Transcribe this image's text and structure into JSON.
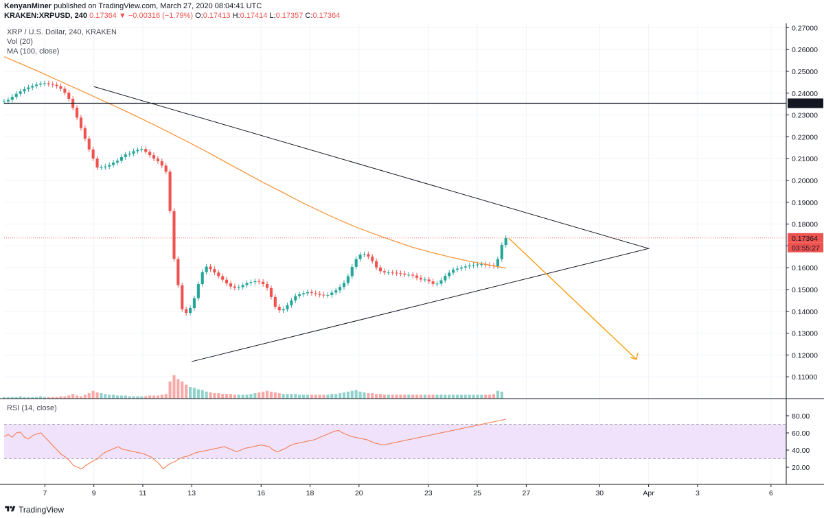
{
  "header": {
    "line1_user": "KenyanMiner",
    "line1_rest": " published on TradingView.com, March 27, 2020 08:04:41 UTC",
    "symbol": "KRAKEN:XRPUSD, 240",
    "last_price": "0.17364",
    "change": "−0.00316 (−1.79%)",
    "o_label": "O:",
    "o_value": "0.17413",
    "h_label": "H:",
    "h_value": "0.17414",
    "l_label": "L:",
    "l_value": "0.17357",
    "c_label": "C:",
    "c_value": "0.17364"
  },
  "legend": {
    "title": "XRP / U.S. Dollar, 240, KRAKEN",
    "volume": "Vol (20)",
    "ma": "MA (100, close)"
  },
  "rsi": {
    "label": "RSI (14, close)"
  },
  "footer": {
    "brand": "TradingView"
  },
  "colors": {
    "up": "#26a69a",
    "down": "#ef5350",
    "vol_up": "#92d2cc",
    "vol_down": "#f7a9a7",
    "ma": "#f7953b",
    "rsi": "#f57c4f",
    "rsi_band": "#f0e2fb",
    "projection_arrow": "#f7a21b"
  },
  "chart_data": [
    {
      "type": "candlestick",
      "title": "XRP / U.S. Dollar, 240, KRAKEN",
      "ylim": [
        0.1,
        0.272
      ],
      "y_ticks": [
        "0.27000",
        "0.26000",
        "0.25000",
        "0.24000",
        "0.23000",
        "0.22000",
        "0.21000",
        "0.20000",
        "0.19000",
        "0.18000",
        "0.17000",
        "0.16000",
        "0.15000",
        "0.14000",
        "0.13000",
        "0.12000",
        "0.11000"
      ],
      "x_ticks": [
        "7",
        "9",
        "11",
        "13",
        "16",
        "18",
        "20",
        "23",
        "25",
        "27",
        "30",
        "Apr",
        "3",
        "6"
      ],
      "price_markers": [
        {
          "value": "0.23537",
          "style": "dark"
        },
        {
          "value": "0.17364",
          "style": "red"
        },
        {
          "value": "03:55:27",
          "style": "red"
        }
      ],
      "horizontal_line": 0.23537,
      "last_price_line": 0.17364,
      "x_range": [
        0,
        185
      ],
      "candle_range": [
        0,
        123
      ],
      "date_ticks_x": [
        10,
        22,
        34,
        46,
        63,
        75,
        87,
        104,
        116,
        128,
        146,
        158,
        170,
        188
      ],
      "series": [
        {
          "name": "Price",
          "values": [
            0.2362,
            0.2369,
            0.2383,
            0.2397,
            0.2408,
            0.2418,
            0.2426,
            0.2433,
            0.2439,
            0.2444,
            0.2445,
            0.2441,
            0.2438,
            0.2432,
            0.242,
            0.2402,
            0.2374,
            0.2333,
            0.2288,
            0.224,
            0.2191,
            0.2142,
            0.21,
            0.2059,
            0.206,
            0.2064,
            0.2071,
            0.2082,
            0.209,
            0.2107,
            0.2119,
            0.2123,
            0.2134,
            0.214,
            0.2144,
            0.2131,
            0.2116,
            0.21,
            0.2088,
            0.2068,
            0.204,
            0.186,
            0.164,
            0.152,
            0.141,
            0.1393,
            0.1415,
            0.146,
            0.1525,
            0.158,
            0.1605,
            0.1594,
            0.1578,
            0.1561,
            0.1545,
            0.1528,
            0.1514,
            0.1508,
            0.1511,
            0.152,
            0.153,
            0.1534,
            0.1538,
            0.1535,
            0.1525,
            0.1507,
            0.1466,
            0.1421,
            0.1405,
            0.141,
            0.1428,
            0.145,
            0.147,
            0.1478,
            0.1483,
            0.1488,
            0.1484,
            0.1481,
            0.1476,
            0.1473,
            0.1475,
            0.1486,
            0.1496,
            0.1512,
            0.153,
            0.1561,
            0.1604,
            0.164,
            0.166,
            0.1662,
            0.1651,
            0.163,
            0.1601,
            0.1584,
            0.1578,
            0.1578,
            0.1577,
            0.1575,
            0.1573,
            0.1568,
            0.1568,
            0.1564,
            0.1554,
            0.1546,
            0.1546,
            0.1537,
            0.1526,
            0.1527,
            0.1542,
            0.1562,
            0.1577,
            0.1591,
            0.1596,
            0.1601,
            0.1606,
            0.161,
            0.1612,
            0.1615,
            0.1616,
            0.1613,
            0.161,
            0.1607,
            0.1639,
            0.1704,
            0.1736
          ]
        },
        {
          "name": "MA (100, close)",
          "values": [
            0.2567,
            0.2531,
            0.2494,
            0.2455,
            0.2417,
            0.2378,
            0.2339,
            0.2299,
            0.2258,
            0.2215,
            0.2172,
            0.2127,
            0.208,
            0.2034,
            0.1988,
            0.1945,
            0.19,
            0.1859,
            0.182,
            0.1784,
            0.1752,
            0.1722,
            0.1693,
            0.167,
            0.1649,
            0.163,
            0.1614,
            0.1598
          ]
        },
        {
          "name": "Triangle",
          "values": [
            0.243,
            0.172,
            0.117
          ]
        }
      ],
      "projection": {
        "from": 0.1736,
        "to": 0.118
      }
    },
    {
      "type": "bar",
      "title": "Vol (20)",
      "values": [
        2,
        2,
        2,
        2,
        3,
        2,
        2,
        2,
        2,
        3,
        2,
        2,
        2,
        2,
        3,
        3,
        4,
        6,
        4,
        3,
        5,
        7,
        10,
        8,
        7,
        6,
        5,
        5,
        4,
        4,
        4,
        3,
        3,
        3,
        3,
        3,
        4,
        4,
        4,
        5,
        6,
        22,
        30,
        25,
        22,
        18,
        15,
        14,
        12,
        11,
        9,
        8,
        7,
        7,
        6,
        6,
        6,
        5,
        5,
        5,
        5,
        6,
        7,
        8,
        9,
        10,
        9,
        8,
        7,
        6,
        6,
        6,
        6,
        5,
        5,
        5,
        5,
        5,
        5,
        5,
        5,
        6,
        6,
        7,
        8,
        9,
        10,
        11,
        9,
        8,
        7,
        7,
        6,
        6,
        5,
        5,
        5,
        5,
        5,
        5,
        5,
        5,
        5,
        5,
        5,
        5,
        5,
        5,
        5,
        5,
        5,
        5,
        5,
        5,
        5,
        5,
        5,
        5,
        5,
        5,
        5,
        6,
        10,
        9
      ]
    },
    {
      "type": "line",
      "title": "RSI (14, close)",
      "ylim": [
        0,
        100
      ],
      "y_ticks": [
        "80.00",
        "60.00",
        "40.00",
        "20.00"
      ],
      "bands": [
        70,
        30
      ],
      "values": [
        56,
        58,
        55,
        60,
        61,
        55,
        53,
        57,
        59,
        60,
        55,
        50,
        45,
        40,
        35,
        32,
        28,
        22,
        20,
        18,
        22,
        25,
        28,
        30,
        35,
        38,
        40,
        42,
        44,
        41,
        40,
        39,
        38,
        37,
        36,
        34,
        32,
        28,
        24,
        18,
        22,
        25,
        27,
        30,
        32,
        33,
        35,
        37,
        38,
        39,
        40,
        41,
        42,
        43,
        44,
        42,
        40,
        38,
        40,
        42,
        43,
        44,
        45,
        46,
        45,
        44,
        40,
        38,
        40,
        42,
        45,
        47,
        48,
        49,
        50,
        51,
        52,
        54,
        56,
        58,
        60,
        62,
        63,
        60,
        58,
        56,
        55,
        54,
        53,
        52,
        50,
        48,
        47,
        46,
        47,
        48,
        49,
        50,
        51,
        52,
        53,
        54,
        55,
        56,
        57,
        58,
        59,
        60,
        61,
        62,
        63,
        64,
        65,
        66,
        67,
        68,
        69,
        70,
        71,
        72,
        73,
        74,
        75,
        76
      ]
    }
  ]
}
